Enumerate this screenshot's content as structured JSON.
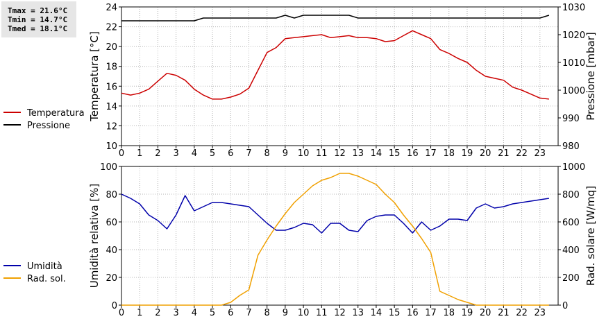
{
  "stats": {
    "tmax": "Tmax = 21.6°C",
    "tmin": "Tmin = 14.7°C",
    "tmed": "Tmed = 18.1°C"
  },
  "chart_data": [
    {
      "type": "line",
      "x_ticks": [
        0,
        1,
        2,
        3,
        4,
        5,
        6,
        7,
        8,
        9,
        10,
        11,
        12,
        13,
        14,
        15,
        16,
        17,
        18,
        19,
        20,
        21,
        22,
        23
      ],
      "xlim": [
        0,
        24
      ],
      "grid": true,
      "legend_position": "left",
      "y_left": {
        "label": "Temperatura [°C]",
        "lim": [
          10,
          24
        ],
        "ticks": [
          10,
          12,
          14,
          16,
          18,
          20,
          22,
          24
        ]
      },
      "y_right": {
        "label": "Pressione [mbar]",
        "lim": [
          980,
          1030
        ],
        "ticks": [
          980,
          990,
          1000,
          1010,
          1020,
          1030
        ]
      },
      "series": [
        {
          "name": "Temperatura",
          "axis": "left",
          "color": "#cc0000",
          "x": [
            0,
            0.5,
            1,
            1.5,
            2,
            2.5,
            3,
            3.5,
            4,
            4.5,
            5,
            5.5,
            6,
            6.5,
            7,
            7.5,
            8,
            8.5,
            9,
            9.5,
            10,
            10.5,
            11,
            11.5,
            12,
            12.5,
            13,
            13.5,
            14,
            14.5,
            15,
            15.5,
            16,
            16.5,
            17,
            17.5,
            18,
            18.5,
            19,
            19.5,
            20,
            20.5,
            21,
            21.5,
            22,
            22.5,
            23,
            23.5
          ],
          "y": [
            15.3,
            15.1,
            15.3,
            15.7,
            16.5,
            17.3,
            17.1,
            16.6,
            15.7,
            15.1,
            14.7,
            14.7,
            14.9,
            15.2,
            15.8,
            17.6,
            19.4,
            19.9,
            20.8,
            20.9,
            21.0,
            21.1,
            21.2,
            20.9,
            21.0,
            21.1,
            20.9,
            20.9,
            20.8,
            20.5,
            20.6,
            21.1,
            21.6,
            21.2,
            20.8,
            19.7,
            19.3,
            18.8,
            18.4,
            17.6,
            17.0,
            16.8,
            16.6,
            15.9,
            15.6,
            15.2,
            14.8,
            14.7
          ]
        },
        {
          "name": "Pressione",
          "axis": "right",
          "color": "#000000",
          "x": [
            0,
            0.5,
            1,
            1.5,
            2,
            2.5,
            3,
            3.5,
            4,
            4.5,
            5,
            5.5,
            6,
            6.5,
            7,
            7.5,
            8,
            8.5,
            9,
            9.5,
            10,
            10.5,
            11,
            11.5,
            12,
            12.5,
            13,
            13.5,
            14,
            14.5,
            15,
            15.5,
            16,
            16.5,
            17,
            17.5,
            18,
            18.5,
            19,
            19.5,
            20,
            20.5,
            21,
            21.5,
            22,
            22.5,
            23,
            23.5
          ],
          "y": [
            1025,
            1025,
            1025,
            1025,
            1025,
            1025,
            1025,
            1025,
            1025,
            1026,
            1026,
            1026,
            1026,
            1026,
            1026,
            1026,
            1026,
            1026,
            1027,
            1026,
            1027,
            1027,
            1027,
            1027,
            1027,
            1027,
            1026,
            1026,
            1026,
            1026,
            1026,
            1026,
            1026,
            1026,
            1026,
            1026,
            1026,
            1026,
            1026,
            1026,
            1026,
            1026,
            1026,
            1026,
            1026,
            1026,
            1026,
            1027
          ]
        }
      ]
    },
    {
      "type": "line",
      "x_ticks": [
        0,
        1,
        2,
        3,
        4,
        5,
        6,
        7,
        8,
        9,
        10,
        11,
        12,
        13,
        14,
        15,
        16,
        17,
        18,
        19,
        20,
        21,
        22,
        23
      ],
      "xlim": [
        0,
        24
      ],
      "grid": true,
      "legend_position": "left",
      "y_left": {
        "label": "Umidità relativa [%]",
        "lim": [
          0,
          100
        ],
        "ticks": [
          0,
          20,
          40,
          60,
          80,
          100
        ]
      },
      "y_right": {
        "label": "Rad. solare [W/mq]",
        "lim": [
          0,
          1000
        ],
        "ticks": [
          0,
          200,
          400,
          600,
          800,
          1000
        ]
      },
      "series": [
        {
          "name": "Umidità",
          "axis": "left",
          "color": "#0000aa",
          "x": [
            0,
            0.5,
            1,
            1.5,
            2,
            2.5,
            3,
            3.5,
            4,
            4.5,
            5,
            5.5,
            6,
            6.5,
            7,
            7.5,
            8,
            8.5,
            9,
            9.5,
            10,
            10.5,
            11,
            11.5,
            12,
            12.5,
            13,
            13.5,
            14,
            14.5,
            15,
            15.5,
            16,
            16.5,
            17,
            17.5,
            18,
            18.5,
            19,
            19.5,
            20,
            20.5,
            21,
            21.5,
            22,
            22.5,
            23,
            23.5
          ],
          "y": [
            80,
            77,
            73,
            65,
            61,
            55,
            65,
            79,
            68,
            71,
            74,
            74,
            73,
            72,
            71,
            65,
            59,
            54,
            54,
            56,
            59,
            58,
            52,
            59,
            59,
            54,
            53,
            61,
            64,
            65,
            65,
            59,
            52,
            60,
            54,
            57,
            62,
            62,
            61,
            70,
            73,
            70,
            71,
            73,
            74,
            75,
            76,
            77
          ]
        },
        {
          "name": "Rad. sol.",
          "axis": "right",
          "color": "#f0a000",
          "x": [
            0,
            0.5,
            1,
            1.5,
            2,
            2.5,
            3,
            3.5,
            4,
            4.5,
            5,
            5.5,
            6,
            6.5,
            7,
            7.5,
            8,
            8.5,
            9,
            9.5,
            10,
            10.5,
            11,
            11.5,
            12,
            12.5,
            13,
            13.5,
            14,
            14.5,
            15,
            15.5,
            16,
            16.5,
            17,
            17.5,
            18,
            18.5,
            19,
            19.5,
            20,
            20.5,
            21,
            21.5,
            22,
            22.5,
            23,
            23.5
          ],
          "y": [
            0,
            0,
            0,
            0,
            0,
            0,
            0,
            0,
            0,
            0,
            0,
            0,
            20,
            70,
            110,
            360,
            470,
            570,
            660,
            740,
            800,
            860,
            900,
            920,
            950,
            950,
            930,
            900,
            870,
            800,
            740,
            650,
            570,
            480,
            380,
            100,
            70,
            40,
            20,
            0,
            0,
            0,
            0,
            0,
            0,
            0,
            0,
            0
          ]
        }
      ]
    }
  ]
}
